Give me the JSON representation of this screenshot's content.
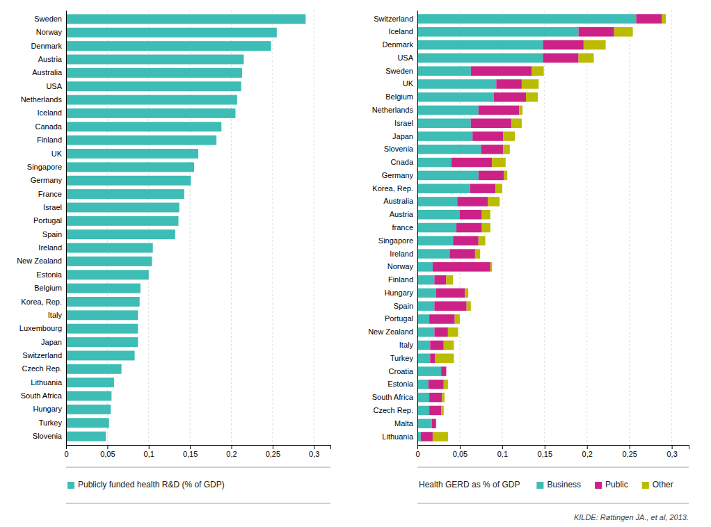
{
  "chart_data": [
    {
      "type": "bar",
      "orientation": "horizontal",
      "grid": true,
      "legend": "bottom",
      "categories": [
        "Sweden",
        "Norway",
        "Denmark",
        "Austria",
        "Australia",
        "USA",
        "Netherlands",
        "Iceland",
        "Canada",
        "Finland",
        "UK",
        "Singapore",
        "Germany",
        "France",
        "Israel",
        "Portugal",
        "Spain",
        "Ireland",
        "New Zealand",
        "Estonia",
        "Belgium",
        "Korea, Rep.",
        "Italy",
        "Luxembourg",
        "Japan",
        "Switzerland",
        "Czech Rep.",
        "Lithuania",
        "South Africa",
        "Hungary",
        "Turkey",
        "Slovenia"
      ],
      "series": [
        {
          "name": "Publicly funded health R&D (% of GDP)",
          "color": "#3DBDB5",
          "values": [
            0.29,
            0.255,
            0.248,
            0.215,
            0.213,
            0.212,
            0.207,
            0.205,
            0.188,
            0.182,
            0.16,
            0.155,
            0.151,
            0.143,
            0.137,
            0.136,
            0.132,
            0.105,
            0.104,
            0.1,
            0.09,
            0.089,
            0.087,
            0.087,
            0.087,
            0.083,
            0.067,
            0.058,
            0.055,
            0.054,
            0.052,
            0.048
          ]
        }
      ],
      "xlim": [
        0,
        0.32
      ],
      "xticks": [
        0,
        {
          "value": 0.05,
          "label": "0,05"
        },
        {
          "value": 0.1,
          "label": "0,1"
        },
        {
          "value": 0.15,
          "label": "0,15"
        },
        {
          "value": 0.2,
          "label": "0,2"
        },
        {
          "value": 0.25,
          "label": "0,25"
        },
        {
          "value": 0.3,
          "label": "0,3"
        }
      ]
    },
    {
      "type": "bar",
      "orientation": "horizontal",
      "stacked": true,
      "grid": true,
      "legend": "bottom",
      "xlabel": "Health GERD as % of GDP",
      "categories": [
        "Switzerland",
        "Iceland",
        "Denmark",
        "USA",
        "Sweden",
        "UK",
        "Belgium",
        "Netherlands",
        "Israel",
        "Japan",
        "Slovenia",
        "Cnada",
        "Germany",
        "Korea, Rep.",
        "Australia",
        "Austria",
        "france",
        "Singapore",
        "Ireland",
        "Norway",
        "Finland",
        "Hungary",
        "Spain",
        "Portugal",
        "New Zealand",
        "Italy",
        "Turkey",
        "Croatia",
        "Estonia",
        "South Africa",
        "Czech Rep.",
        "Malta",
        "Lithuania"
      ],
      "series": [
        {
          "name": "Business",
          "color": "#3DBDB5",
          "values": [
            0.258,
            0.19,
            0.148,
            0.148,
            0.063,
            0.093,
            0.09,
            0.072,
            0.063,
            0.065,
            0.075,
            0.04,
            0.072,
            0.062,
            0.047,
            0.05,
            0.046,
            0.042,
            0.038,
            0.018,
            0.02,
            0.022,
            0.02,
            0.014,
            0.02,
            0.015,
            0.015,
            0.028,
            0.013,
            0.014,
            0.014,
            0.017,
            0.004
          ]
        },
        {
          "name": "Public",
          "color": "#CC2288",
          "values": [
            0.03,
            0.042,
            0.048,
            0.042,
            0.072,
            0.03,
            0.038,
            0.048,
            0.048,
            0.036,
            0.026,
            0.048,
            0.03,
            0.03,
            0.036,
            0.026,
            0.03,
            0.03,
            0.03,
            0.068,
            0.014,
            0.034,
            0.038,
            0.03,
            0.016,
            0.016,
            0.006,
            0.006,
            0.018,
            0.015,
            0.014,
            0.005,
            0.014
          ]
        },
        {
          "name": "Other",
          "color": "#BBBB00",
          "values": [
            0.005,
            0.022,
            0.026,
            0.018,
            0.014,
            0.02,
            0.014,
            0.004,
            0.012,
            0.014,
            0.008,
            0.016,
            0.004,
            0.008,
            0.014,
            0.01,
            0.01,
            0.008,
            0.006,
            0.002,
            0.008,
            0.004,
            0.005,
            0.006,
            0.012,
            0.012,
            0.022,
            0.0,
            0.005,
            0.003,
            0.003,
            0.0,
            0.018
          ]
        }
      ],
      "xlim": [
        0,
        0.32
      ],
      "xticks": [
        0,
        {
          "value": 0.05,
          "label": "0,05"
        },
        {
          "value": 0.1,
          "label": "0,1"
        },
        {
          "value": 0.15,
          "label": "0,15"
        },
        {
          "value": 0.2,
          "label": "0,2"
        },
        {
          "value": 0.25,
          "label": "0,25"
        },
        {
          "value": 0.3,
          "label": "0,3"
        }
      ],
      "annotations": [
        "KILDE: Røttingen JA., et al, 2013."
      ]
    }
  ]
}
